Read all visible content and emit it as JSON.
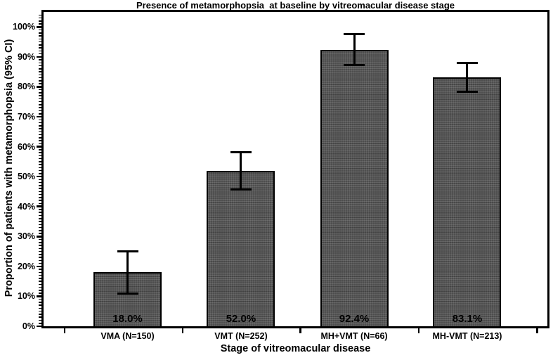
{
  "figure": {
    "background": "#ffffff"
  },
  "chart_data": {
    "type": "bar",
    "title": "Presence of metamorphopsia  at baseline by vitreomacular disease stage",
    "xlabel": "Stage of vitreomacular disease",
    "ylabel": "Proportion of patients with metamorphopsia (95% CI)",
    "categories": [
      "VMA (N=150)",
      "VMT (N=252)",
      "MH+VMT (N=66)",
      "MH-VMT (N=213)"
    ],
    "values": [
      18.0,
      52.0,
      92.4,
      83.1
    ],
    "bar_value_labels": [
      "18.0%",
      "52.0%",
      "92.4%",
      "83.1%"
    ],
    "error_bars_95ci": {
      "low": [
        11.0,
        45.8,
        87.3,
        78.3
      ],
      "high": [
        25.0,
        58.2,
        97.5,
        88.0
      ]
    },
    "y_axis": {
      "min": 0,
      "max_labeled": 100,
      "frame_max": 105,
      "major_tick_interval": 10,
      "minor_tick_interval": 1,
      "tick_labels": [
        "0%",
        "10%",
        "20%",
        "30%",
        "40%",
        "50%",
        "60%",
        "70%",
        "80%",
        "90%",
        "100%"
      ]
    },
    "grid": false,
    "legend": "none",
    "colors": {
      "bar_fill": "#4e4e4e",
      "bar_border": "#000000",
      "axis": "#000000",
      "text": "#000000",
      "background": "#ffffff"
    }
  }
}
